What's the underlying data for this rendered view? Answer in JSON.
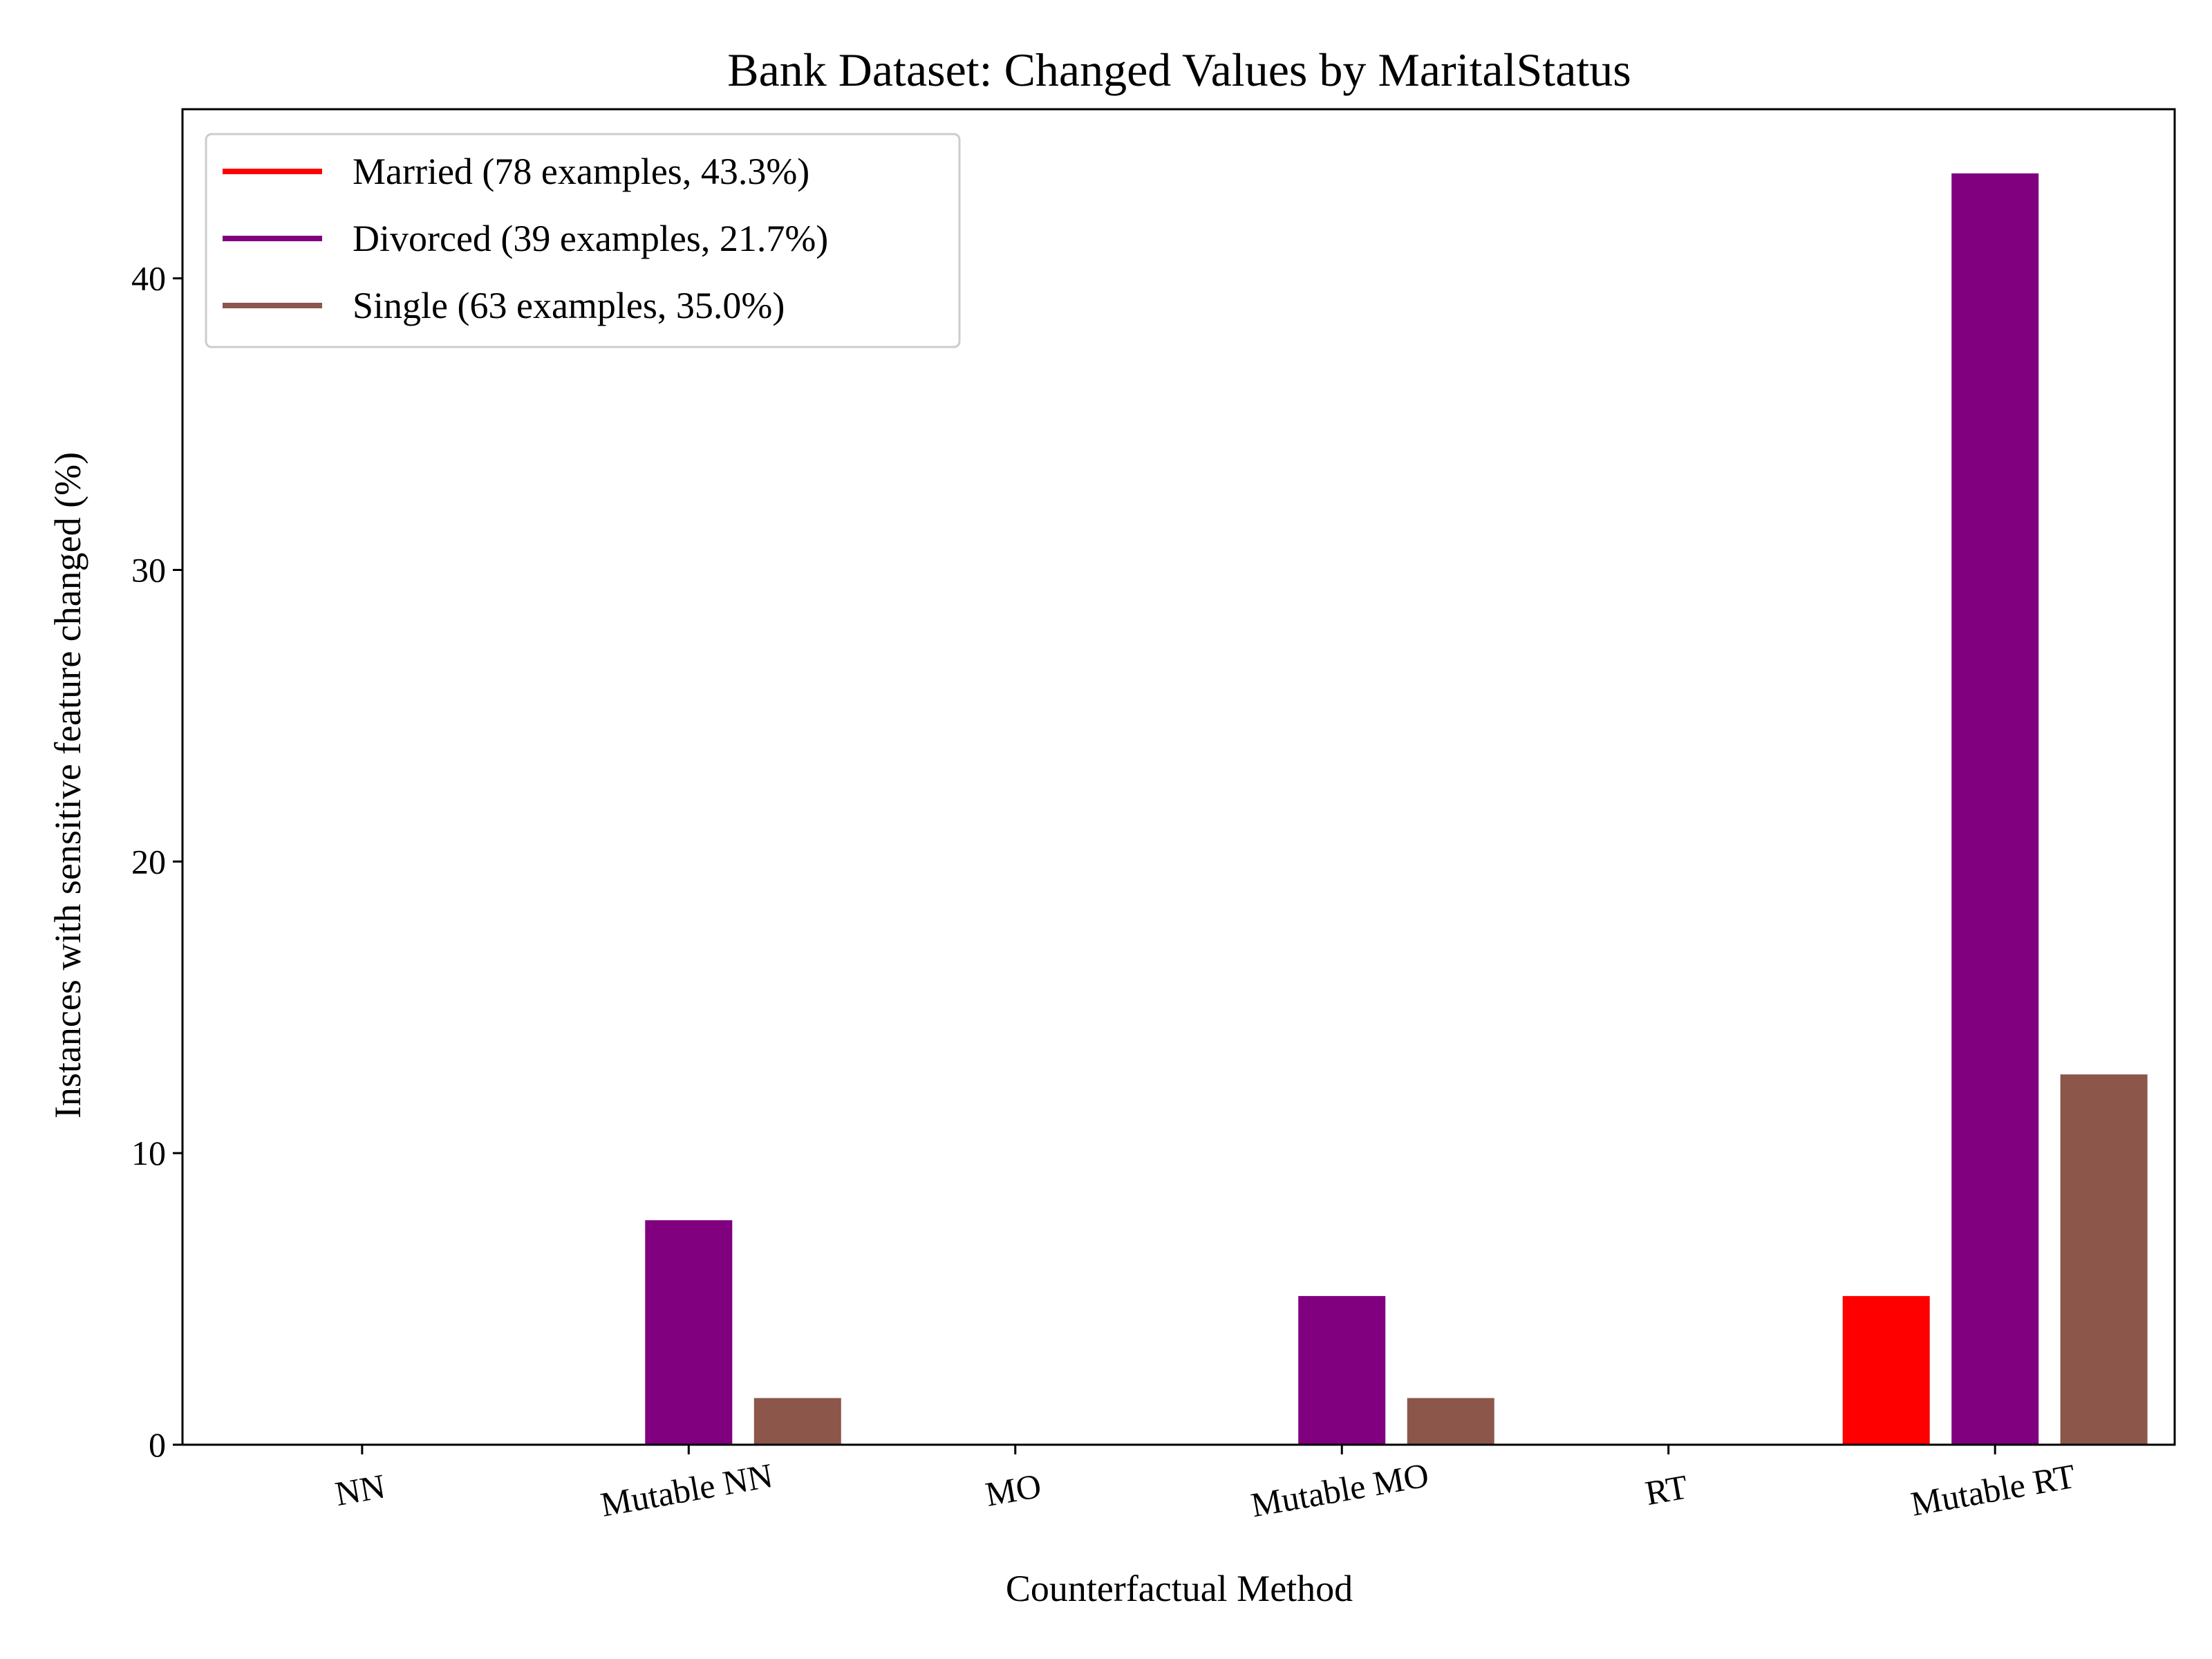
{
  "chart_data": {
    "type": "bar",
    "title": "Bank Dataset: Changed Values by MaritalStatus",
    "xlabel": "Counterfactual Method",
    "ylabel": "Instances with sensitive feature changed (%)",
    "categories": [
      "NN",
      "Mutable NN",
      "MO",
      "Mutable MO",
      "RT",
      "Mutable RT"
    ],
    "series": [
      {
        "name": "Married (78 examples, 43.3%)",
        "color": "#ff0000",
        "values": [
          0,
          0,
          0,
          0,
          0,
          5.1
        ]
      },
      {
        "name": "Divorced (39 examples, 21.7%)",
        "color": "#800080",
        "values": [
          0,
          7.7,
          0,
          5.1,
          0,
          43.6
        ]
      },
      {
        "name": "Single (63 examples, 35.0%)",
        "color": "#8c564b",
        "values": [
          0,
          1.6,
          0,
          1.6,
          0,
          12.7
        ]
      }
    ],
    "ylim": [
      0,
      45.8
    ],
    "yticks": [
      0,
      10,
      20,
      30,
      40
    ],
    "grid": false,
    "legend_position": "top-left"
  }
}
